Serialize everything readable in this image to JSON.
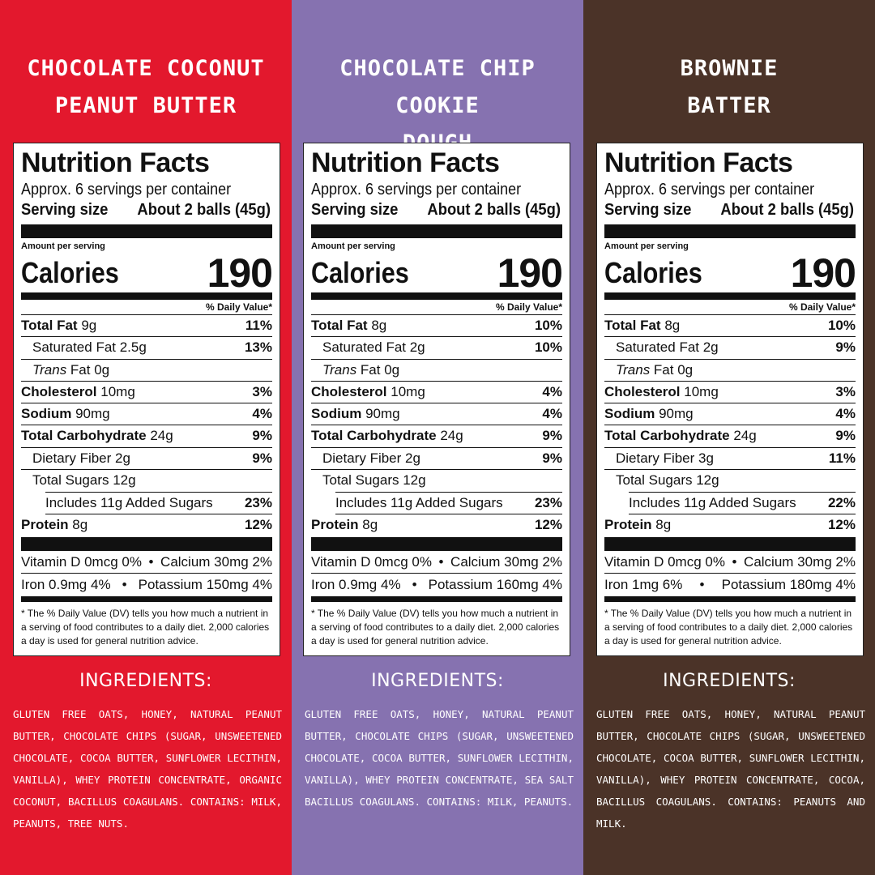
{
  "columns": [
    {
      "title_line1": "CHOCOLATE COCONUT",
      "title_line2": "PEANUT BUTTER",
      "label": {
        "heading": "Nutrition Facts",
        "servings_per_container": "Approx. 6 servings per container",
        "serving_size_label": "Serving size",
        "serving_size_value": "About 2 balls (45g)",
        "amount_per_serving": "Amount per serving",
        "calories_label": "Calories",
        "calories_value": "190",
        "dv_header": "% Daily Value*",
        "total_fat": {
          "name": "Total Fat",
          "amount": "9g",
          "pct": "11%"
        },
        "saturated_fat": {
          "name": "Saturated Fat 2.5g",
          "pct": "13%"
        },
        "trans_fat": {
          "name_italic": "Trans",
          "name_rest": " Fat 0g"
        },
        "cholesterol": {
          "name": "Cholesterol",
          "amount": "10mg",
          "pct": "3%"
        },
        "sodium": {
          "name": "Sodium",
          "amount": "90mg",
          "pct": "4%"
        },
        "total_carb": {
          "name": "Total Carbohydrate",
          "amount": "24g",
          "pct": "9%"
        },
        "dietary_fiber": {
          "name": "Dietary Fiber 2g",
          "pct": "9%"
        },
        "total_sugars": {
          "name": "Total Sugars 12g"
        },
        "added_sugars": {
          "name": "Includes 11g Added Sugars",
          "pct": "23%"
        },
        "protein": {
          "name": "Protein",
          "amount": "8g",
          "pct": "12%"
        },
        "vitamin_d": "Vitamin D 0mcg 0%",
        "calcium": "Calcium 30mg 2%",
        "iron": "Iron 0.9mg 4%",
        "potassium": "Potassium 150mg 4%",
        "footnote": "* The % Daily Value (DV) tells you how much a nutrient in a serving of food contributes to a daily diet. 2,000 calories a day is used for general nutrition advice."
      },
      "ingredients_title": "INGREDIENTS:",
      "ingredients": "GLUTEN FREE OATS, HONEY, NATURAL PEANUT BUTTER, CHOCOLATE CHIPS (SUGAR, UNSWEETENED CHOCOLATE, COCOA BUTTER, SUNFLOWER LECITHIN, VANILLA), WHEY PROTEIN CONCENTRATE, ORGANIC COCONUT, BACILLUS COAGULANS. CONTAINS: MILK, PEANUTS, TREE NUTS."
    },
    {
      "title_line1": "CHOCOLATE CHIP COOKIE",
      "title_line2": "DOUGH",
      "label": {
        "heading": "Nutrition Facts",
        "servings_per_container": "Approx. 6 servings per container",
        "serving_size_label": "Serving size",
        "serving_size_value": "About 2 balls (45g)",
        "amount_per_serving": "Amount per serving",
        "calories_label": "Calories",
        "calories_value": "190",
        "dv_header": "% Daily Value*",
        "total_fat": {
          "name": "Total Fat",
          "amount": "8g",
          "pct": "10%"
        },
        "saturated_fat": {
          "name": "Saturated Fat 2g",
          "pct": "10%"
        },
        "trans_fat": {
          "name_italic": "Trans",
          "name_rest": " Fat 0g"
        },
        "cholesterol": {
          "name": "Cholesterol",
          "amount": "10mg",
          "pct": "4%"
        },
        "sodium": {
          "name": "Sodium",
          "amount": "90mg",
          "pct": "4%"
        },
        "total_carb": {
          "name": "Total Carbohydrate",
          "amount": "24g",
          "pct": "9%"
        },
        "dietary_fiber": {
          "name": "Dietary Fiber 2g",
          "pct": "9%"
        },
        "total_sugars": {
          "name": "Total Sugars 12g"
        },
        "added_sugars": {
          "name": "Includes 11g Added Sugars",
          "pct": "23%"
        },
        "protein": {
          "name": "Protein",
          "amount": "8g",
          "pct": "12%"
        },
        "vitamin_d": "Vitamin D 0mcg 0%",
        "calcium": "Calcium 30mg 2%",
        "iron": "Iron 0.9mg 4%",
        "potassium": "Potassium 160mg 4%",
        "footnote": "* The % Daily Value (DV) tells you how much a nutrient in a serving of food contributes to a daily diet. 2,000 calories a day is used for general nutrition advice."
      },
      "ingredients_title": "INGREDIENTS:",
      "ingredients": "GLUTEN FREE OATS, HONEY, NATURAL PEANUT BUTTER, CHOCOLATE CHIPS (SUGAR, UNSWEETENED CHOCOLATE, COCOA BUTTER, SUNFLOWER LECITHIN, VANILLA), WHEY PROTEIN CONCENTRATE, SEA SALT BACILLUS COAGULANS. CONTAINS: MILK, PEANUTS."
    },
    {
      "title_line1": "BROWNIE",
      "title_line2": "BATTER",
      "label": {
        "heading": "Nutrition Facts",
        "servings_per_container": "Approx. 6 servings per container",
        "serving_size_label": "Serving size",
        "serving_size_value": "About 2 balls (45g)",
        "amount_per_serving": "Amount per serving",
        "calories_label": "Calories",
        "calories_value": "190",
        "dv_header": "% Daily Value*",
        "total_fat": {
          "name": "Total Fat",
          "amount": "8g",
          "pct": "10%"
        },
        "saturated_fat": {
          "name": "Saturated Fat 2g",
          "pct": "9%"
        },
        "trans_fat": {
          "name_italic": "Trans",
          "name_rest": " Fat 0g"
        },
        "cholesterol": {
          "name": "Cholesterol",
          "amount": "10mg",
          "pct": "3%"
        },
        "sodium": {
          "name": "Sodium",
          "amount": "90mg",
          "pct": "4%"
        },
        "total_carb": {
          "name": "Total Carbohydrate",
          "amount": "24g",
          "pct": "9%"
        },
        "dietary_fiber": {
          "name": "Dietary Fiber 3g",
          "pct": "11%"
        },
        "total_sugars": {
          "name": "Total Sugars 12g"
        },
        "added_sugars": {
          "name": "Includes 11g Added Sugars",
          "pct": "22%"
        },
        "protein": {
          "name": "Protein",
          "amount": "8g",
          "pct": "12%"
        },
        "vitamin_d": "Vitamin D 0mcg 0%",
        "calcium": "Calcium 30mg 2%",
        "iron": "Iron 1mg 6%",
        "potassium": "Potassium 180mg 4%",
        "footnote": "* The % Daily Value (DV) tells you how much a nutrient in a serving of food contributes to a daily diet. 2,000 calories a day is used for general nutrition advice."
      },
      "ingredients_title": "INGREDIENTS:",
      "ingredients": "GLUTEN FREE OATS, HONEY, NATURAL PEANUT BUTTER, CHOCOLATE CHIPS (SUGAR, UNSWEETENED CHOCOLATE, COCOA BUTTER, SUNFLOWER LECITHIN, VANILLA), WHEY PROTEIN CONCENTRATE, COCOA, BACILLUS COAGULANS. CONTAINS: PEANUTS AND MILK."
    }
  ],
  "colors": {
    "red": "#e3182d",
    "purple": "#8672b0",
    "brown": "#4b3328",
    "label_bg": "#ffffff",
    "text_light": "#ffffff"
  }
}
